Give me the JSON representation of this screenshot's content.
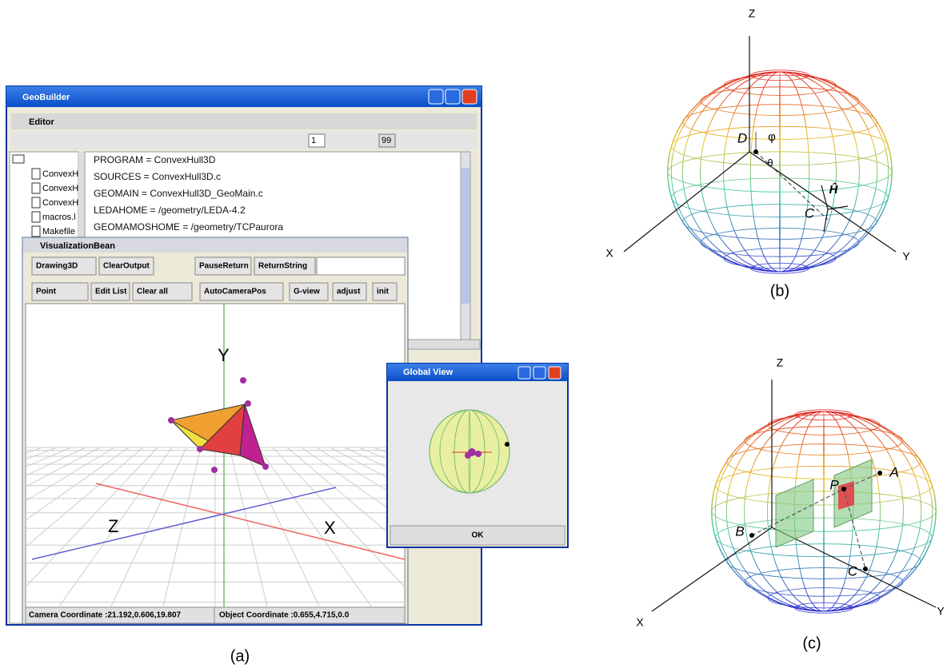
{
  "main_window": {
    "title": "GeoBuilder",
    "editor_title": "Editor",
    "frame_field": "1",
    "zoom_label": "99",
    "tree_items": [
      "ConvexH",
      "ConvexH",
      "ConvexH",
      "macros.l",
      "Makefile"
    ],
    "editor_lines": [
      "PROGRAM = ConvexHull3D",
      "SOURCES = ConvexHull3D.c",
      "GEOMAIN = ConvexHull3D_GeoMain.c",
      "LEDAHOME = /geometry/LEDA-4.2",
      "GEOMAMOSHOME = /geometry/TCPaurora"
    ]
  },
  "vis_window": {
    "title": "VisualizationBean",
    "toolbar1": [
      "Drawing3D",
      "ClearOutput",
      "PauseReturn",
      "ReturnString"
    ],
    "toolbar2": [
      "Point",
      "Edit List",
      "Clear all",
      "AutoCameraPos",
      "G-view",
      "adjust",
      "init"
    ],
    "axis_labels": {
      "y": "Y",
      "z": "Z",
      "x": "X"
    },
    "camera_status": "Camera Coordinate :21.192,0.606,19.807",
    "object_status": "Object Coordinate :0.655,4.715,0.0"
  },
  "global_view": {
    "title": "Global View",
    "ok": "OK"
  },
  "caption_a": "(a)",
  "panel_b": {
    "axes": {
      "z": "Z",
      "x": "X",
      "y": "Y"
    },
    "labels": {
      "d": "D",
      "phi": "φ",
      "theta": "θ",
      "h": "Ĥ",
      "c": "C"
    },
    "caption": "(b)"
  },
  "panel_c": {
    "axes": {
      "z": "Z",
      "x": "X",
      "y": "Y"
    },
    "labels": {
      "p": "P",
      "a": "A",
      "b": "B",
      "c": "C"
    },
    "caption": "(c)"
  }
}
